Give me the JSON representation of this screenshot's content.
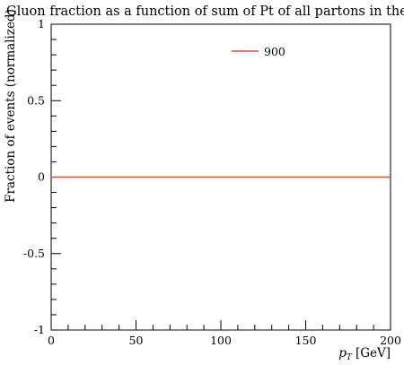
{
  "chart_data": {
    "type": "line",
    "title": "Gluon fraction as a function of sum of Pt of all partons in the event",
    "xlabel_main": "p",
    "xlabel_sub": "T",
    "xlabel_unit": "[GeV]",
    "ylabel": "Fraction of events (normalized)",
    "xlim": [
      0,
      200
    ],
    "ylim": [
      -1,
      1
    ],
    "grid": false,
    "legend_position": "top-right",
    "x_ticks": [
      {
        "value": 0,
        "label": "0"
      },
      {
        "value": 50,
        "label": "50"
      },
      {
        "value": 100,
        "label": "100"
      },
      {
        "value": 150,
        "label": "150"
      },
      {
        "value": 200,
        "label": "200"
      }
    ],
    "y_ticks": [
      {
        "value": 1,
        "label": "1"
      },
      {
        "value": 0.5,
        "label": "0.5"
      },
      {
        "value": 0,
        "label": "0"
      },
      {
        "value": -0.5,
        "label": "-0.5"
      },
      {
        "value": -1,
        "label": "-1"
      }
    ],
    "series": [
      {
        "name": "900",
        "color": "#e8462b",
        "x": [
          0,
          200
        ],
        "values": [
          0,
          0
        ]
      }
    ]
  }
}
